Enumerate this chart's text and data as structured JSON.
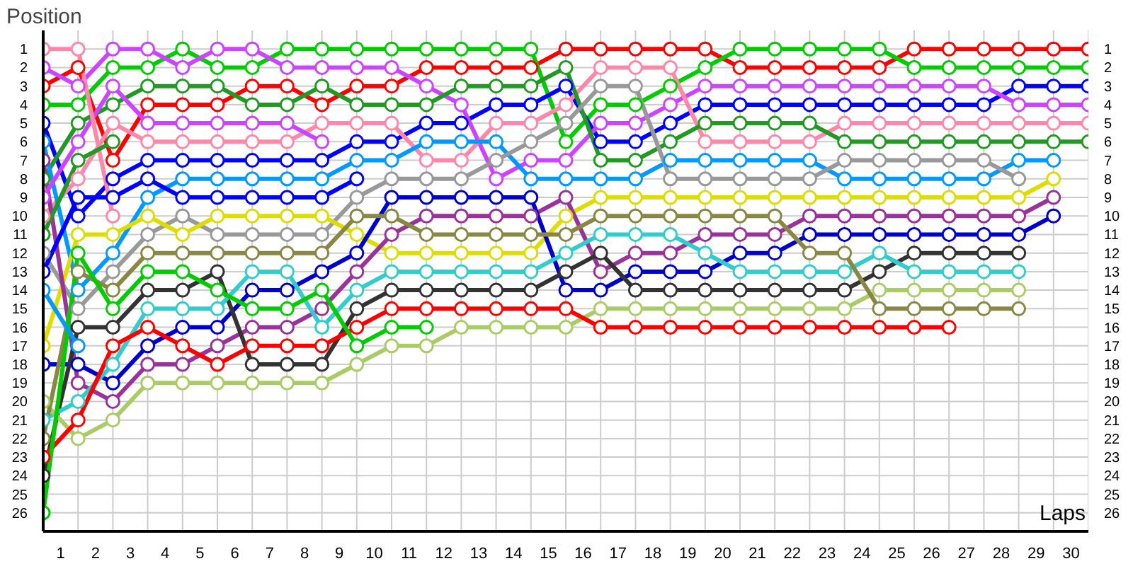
{
  "chart_data": {
    "type": "line",
    "xlabel": "Laps",
    "ylabel": "Position",
    "marker": "circle",
    "grid": true,
    "x": [
      0,
      1,
      2,
      3,
      4,
      5,
      6,
      7,
      8,
      9,
      10,
      11,
      12,
      13,
      14,
      15,
      16,
      17,
      18,
      19,
      20,
      21,
      22,
      23,
      24,
      25,
      26,
      27,
      28,
      29,
      30
    ],
    "xlim": [
      0,
      30
    ],
    "ylim": [
      27,
      0
    ],
    "y2lim": [
      27,
      0
    ],
    "xticks": [
      {
        "value": 0.5,
        "label": "1"
      },
      {
        "value": 1.5,
        "label": "2"
      },
      {
        "value": 2.5,
        "label": "3"
      },
      {
        "value": 3.5,
        "label": "4"
      },
      {
        "value": 4.5,
        "label": "5"
      },
      {
        "value": 5.5,
        "label": "6"
      },
      {
        "value": 6.5,
        "label": "7"
      },
      {
        "value": 7.5,
        "label": "8"
      },
      {
        "value": 8.5,
        "label": "9"
      },
      {
        "value": 9.5,
        "label": "10"
      },
      {
        "value": 10.5,
        "label": "11"
      },
      {
        "value": 11.5,
        "label": "12"
      },
      {
        "value": 12.5,
        "label": "13"
      },
      {
        "value": 13.5,
        "label": "14"
      },
      {
        "value": 14.5,
        "label": "15"
      },
      {
        "value": 15.5,
        "label": "16"
      },
      {
        "value": 16.5,
        "label": "17"
      },
      {
        "value": 17.5,
        "label": "18"
      },
      {
        "value": 18.5,
        "label": "19"
      },
      {
        "value": 19.5,
        "label": "20"
      },
      {
        "value": 20.5,
        "label": "21"
      },
      {
        "value": 21.5,
        "label": "22"
      },
      {
        "value": 22.5,
        "label": "23"
      },
      {
        "value": 23.5,
        "label": "24"
      },
      {
        "value": 24.5,
        "label": "25"
      },
      {
        "value": 25.5,
        "label": "26"
      },
      {
        "value": 26.5,
        "label": "27"
      },
      {
        "value": 27.5,
        "label": "28"
      },
      {
        "value": 28.5,
        "label": "29"
      },
      {
        "value": 29.5,
        "label": "30"
      },
      {
        "value": 0,
        "label": null
      },
      {
        "value": 1,
        "label": null
      },
      {
        "value": 2,
        "label": null
      },
      {
        "value": 3,
        "label": null
      },
      {
        "value": 4,
        "label": null
      },
      {
        "value": 5,
        "label": null
      },
      {
        "value": 6,
        "label": null
      },
      {
        "value": 7,
        "label": null
      },
      {
        "value": 8,
        "label": null
      },
      {
        "value": 9,
        "label": null
      },
      {
        "value": 10,
        "label": null
      },
      {
        "value": 11,
        "label": null
      },
      {
        "value": 12,
        "label": null
      },
      {
        "value": 13,
        "label": null
      },
      {
        "value": 14,
        "label": null
      },
      {
        "value": 15,
        "label": null
      },
      {
        "value": 16,
        "label": null
      },
      {
        "value": 17,
        "label": null
      },
      {
        "value": 18,
        "label": null
      },
      {
        "value": 19,
        "label": null
      },
      {
        "value": 20,
        "label": null
      },
      {
        "value": 21,
        "label": null
      },
      {
        "value": 22,
        "label": null
      },
      {
        "value": 23,
        "label": null
      },
      {
        "value": 24,
        "label": null
      },
      {
        "value": 25,
        "label": null
      },
      {
        "value": 26,
        "label": null
      },
      {
        "value": 27,
        "label": null
      },
      {
        "value": 28,
        "label": null
      },
      {
        "value": 29,
        "label": null
      },
      {
        "value": 30,
        "label": null
      }
    ],
    "yticks": [
      1,
      2,
      3,
      4,
      5,
      6,
      7,
      8,
      9,
      10,
      11,
      12,
      13,
      14,
      15,
      16,
      17,
      18,
      19,
      20,
      21,
      22,
      23,
      24,
      25,
      26
    ],
    "y2ticks": [
      1,
      2,
      3,
      4,
      5,
      6,
      7,
      8,
      9,
      10,
      11,
      12,
      13,
      14,
      15,
      16,
      17,
      18,
      19,
      20,
      21,
      22,
      23,
      24,
      25,
      26
    ],
    "series": [
      {
        "color": "#ff0000",
        "values": [
          3,
          2,
          7,
          4,
          4,
          4,
          3,
          3,
          4,
          3,
          3,
          2,
          2,
          2,
          2,
          1,
          1,
          1,
          1,
          1,
          2,
          2,
          2,
          2,
          2,
          1,
          1,
          1,
          1,
          1,
          1
        ]
      },
      {
        "color": "#00cc00",
        "values": [
          4,
          4,
          2,
          2,
          1,
          2,
          2,
          1,
          1,
          1,
          1,
          1,
          1,
          1,
          1,
          6,
          4,
          4,
          3,
          2,
          1,
          1,
          1,
          1,
          1,
          2,
          2,
          2,
          2,
          2,
          2
        ]
      },
      {
        "color": "#0000ff",
        "values": [
          5,
          10,
          8,
          7,
          7,
          7,
          7,
          7,
          7,
          6,
          6,
          5,
          5,
          4,
          4,
          3,
          6,
          6,
          5,
          4,
          4,
          4,
          4,
          4,
          4,
          4,
          4,
          4,
          3,
          3,
          3
        ]
      },
      {
        "color": "#cc44ff",
        "values": [
          2,
          3,
          1,
          1,
          2,
          1,
          1,
          2,
          2,
          2,
          2,
          3,
          4,
          8,
          7,
          7,
          5,
          5,
          4,
          3,
          3,
          3,
          3,
          3,
          3,
          3,
          3,
          3,
          4,
          4,
          4
        ]
      },
      {
        "color": "#ff88aa",
        "values": [
          10,
          8,
          5,
          6,
          6,
          6,
          6,
          6,
          5,
          5,
          5,
          7,
          7,
          5,
          5,
          4,
          2,
          2,
          2,
          6,
          6,
          6,
          6,
          5,
          5,
          5,
          5,
          5,
          5,
          5,
          5
        ]
      },
      {
        "color": "#229922",
        "values": [
          8,
          5,
          4,
          3,
          3,
          3,
          4,
          4,
          3,
          4,
          4,
          4,
          3,
          3,
          3,
          2,
          7,
          7,
          6,
          5,
          5,
          5,
          5,
          6,
          6,
          6,
          6,
          6,
          6,
          6,
          6
        ]
      },
      {
        "color": "#0099ff",
        "values": [
          6,
          14,
          12,
          9,
          8,
          8,
          8,
          8,
          8,
          7,
          7,
          6,
          6,
          6,
          8,
          8,
          8,
          8,
          7,
          7,
          7,
          7,
          7,
          8,
          8,
          8,
          8,
          8,
          7,
          7,
          null
        ]
      },
      {
        "color": "#999999",
        "values": [
          12,
          15,
          13,
          11,
          10,
          11,
          11,
          11,
          11,
          9,
          8,
          8,
          8,
          7,
          6,
          5,
          3,
          3,
          8,
          8,
          8,
          8,
          8,
          7,
          7,
          7,
          7,
          7,
          8,
          null,
          null
        ]
      },
      {
        "color": "#dddd00",
        "values": [
          17,
          11,
          11,
          10,
          11,
          10,
          10,
          10,
          10,
          11,
          12,
          12,
          12,
          12,
          12,
          10,
          9,
          9,
          9,
          9,
          9,
          9,
          9,
          9,
          9,
          9,
          9,
          9,
          9,
          8,
          null
        ]
      },
      {
        "color": "#993399",
        "values": [
          7,
          19,
          20,
          18,
          18,
          17,
          16,
          16,
          15,
          13,
          11,
          10,
          10,
          10,
          10,
          9,
          13,
          12,
          12,
          11,
          11,
          11,
          10,
          10,
          10,
          10,
          10,
          10,
          10,
          9,
          null
        ]
      },
      {
        "color": "#0000cc",
        "values": [
          18,
          18,
          19,
          17,
          16,
          16,
          14,
          14,
          13,
          12,
          9,
          9,
          9,
          9,
          9,
          14,
          14,
          13,
          13,
          13,
          12,
          12,
          11,
          11,
          11,
          11,
          11,
          11,
          11,
          10,
          null
        ]
      },
      {
        "color": "#333333",
        "values": [
          24,
          16,
          16,
          14,
          14,
          13,
          18,
          18,
          18,
          15,
          14,
          14,
          14,
          14,
          14,
          13,
          12,
          14,
          14,
          14,
          14,
          14,
          14,
          14,
          13,
          12,
          12,
          12,
          12,
          null,
          null
        ]
      },
      {
        "color": "#33cccc",
        "values": [
          21,
          20,
          18,
          15,
          15,
          15,
          13,
          13,
          16,
          14,
          13,
          13,
          13,
          13,
          13,
          12,
          11,
          11,
          11,
          12,
          13,
          13,
          13,
          13,
          12,
          13,
          13,
          13,
          13,
          null,
          null
        ]
      },
      {
        "color": "#aacc66",
        "values": [
          20,
          22,
          21,
          19,
          19,
          19,
          19,
          19,
          19,
          18,
          17,
          17,
          16,
          16,
          16,
          16,
          15,
          15,
          15,
          15,
          15,
          15,
          15,
          15,
          14,
          14,
          14,
          14,
          14,
          null,
          null
        ]
      },
      {
        "color": "#888844",
        "values": [
          22,
          13,
          14,
          12,
          12,
          12,
          12,
          12,
          12,
          10,
          10,
          11,
          11,
          11,
          11,
          11,
          10,
          10,
          10,
          10,
          10,
          10,
          12,
          12,
          15,
          15,
          15,
          15,
          15,
          null,
          null
        ]
      },
      {
        "color": "#ff0000",
        "values": [
          23,
          21,
          17,
          16,
          17,
          18,
          17,
          17,
          17,
          16,
          15,
          15,
          15,
          15,
          15,
          15,
          16,
          16,
          16,
          16,
          16,
          16,
          16,
          16,
          16,
          16,
          16,
          null,
          null,
          null,
          null
        ]
      },
      {
        "color": "#00cc00",
        "values": [
          26,
          12,
          15,
          13,
          13,
          14,
          15,
          15,
          14,
          17,
          16,
          16,
          null,
          null,
          null,
          null,
          null,
          null,
          null,
          null,
          null,
          null,
          null,
          null,
          null,
          null,
          null,
          null,
          null,
          null,
          null
        ]
      },
      {
        "color": "#cc44ff",
        "values": [
          9,
          6,
          3,
          5,
          5,
          5,
          5,
          5,
          6,
          null,
          null,
          null,
          null,
          null,
          null,
          null,
          null,
          null,
          null,
          null,
          null,
          null,
          null,
          null,
          null,
          null,
          null,
          null,
          null,
          null,
          null
        ]
      },
      {
        "color": "#0000ff",
        "values": [
          13,
          9,
          9,
          8,
          9,
          9,
          9,
          9,
          9,
          8,
          null,
          null,
          null,
          null,
          null,
          null,
          null,
          null,
          null,
          null,
          null,
          null,
          null,
          null,
          null,
          null,
          null,
          null,
          null,
          null,
          null
        ]
      },
      {
        "color": "#ff88aa",
        "values": [
          1,
          1,
          10,
          null,
          null,
          null,
          null,
          null,
          null,
          null,
          null,
          null,
          null,
          null,
          null,
          null,
          null,
          null,
          null,
          null,
          null,
          null,
          null,
          null,
          null,
          null,
          null,
          null,
          null,
          null,
          null
        ]
      },
      {
        "color": "#229922",
        "values": [
          11,
          7,
          6,
          null,
          null,
          null,
          null,
          null,
          null,
          null,
          null,
          null,
          null,
          null,
          null,
          null,
          null,
          null,
          null,
          null,
          null,
          null,
          null,
          null,
          null,
          null,
          null,
          null,
          null,
          null,
          null
        ]
      },
      {
        "color": "#0099ff",
        "values": [
          14,
          17,
          null,
          null,
          null,
          null,
          null,
          null,
          null,
          null,
          null,
          null,
          null,
          null,
          null,
          null,
          null,
          null,
          null,
          null,
          null,
          null,
          null,
          null,
          null,
          null,
          null,
          null,
          null,
          null,
          null
        ]
      }
    ]
  }
}
